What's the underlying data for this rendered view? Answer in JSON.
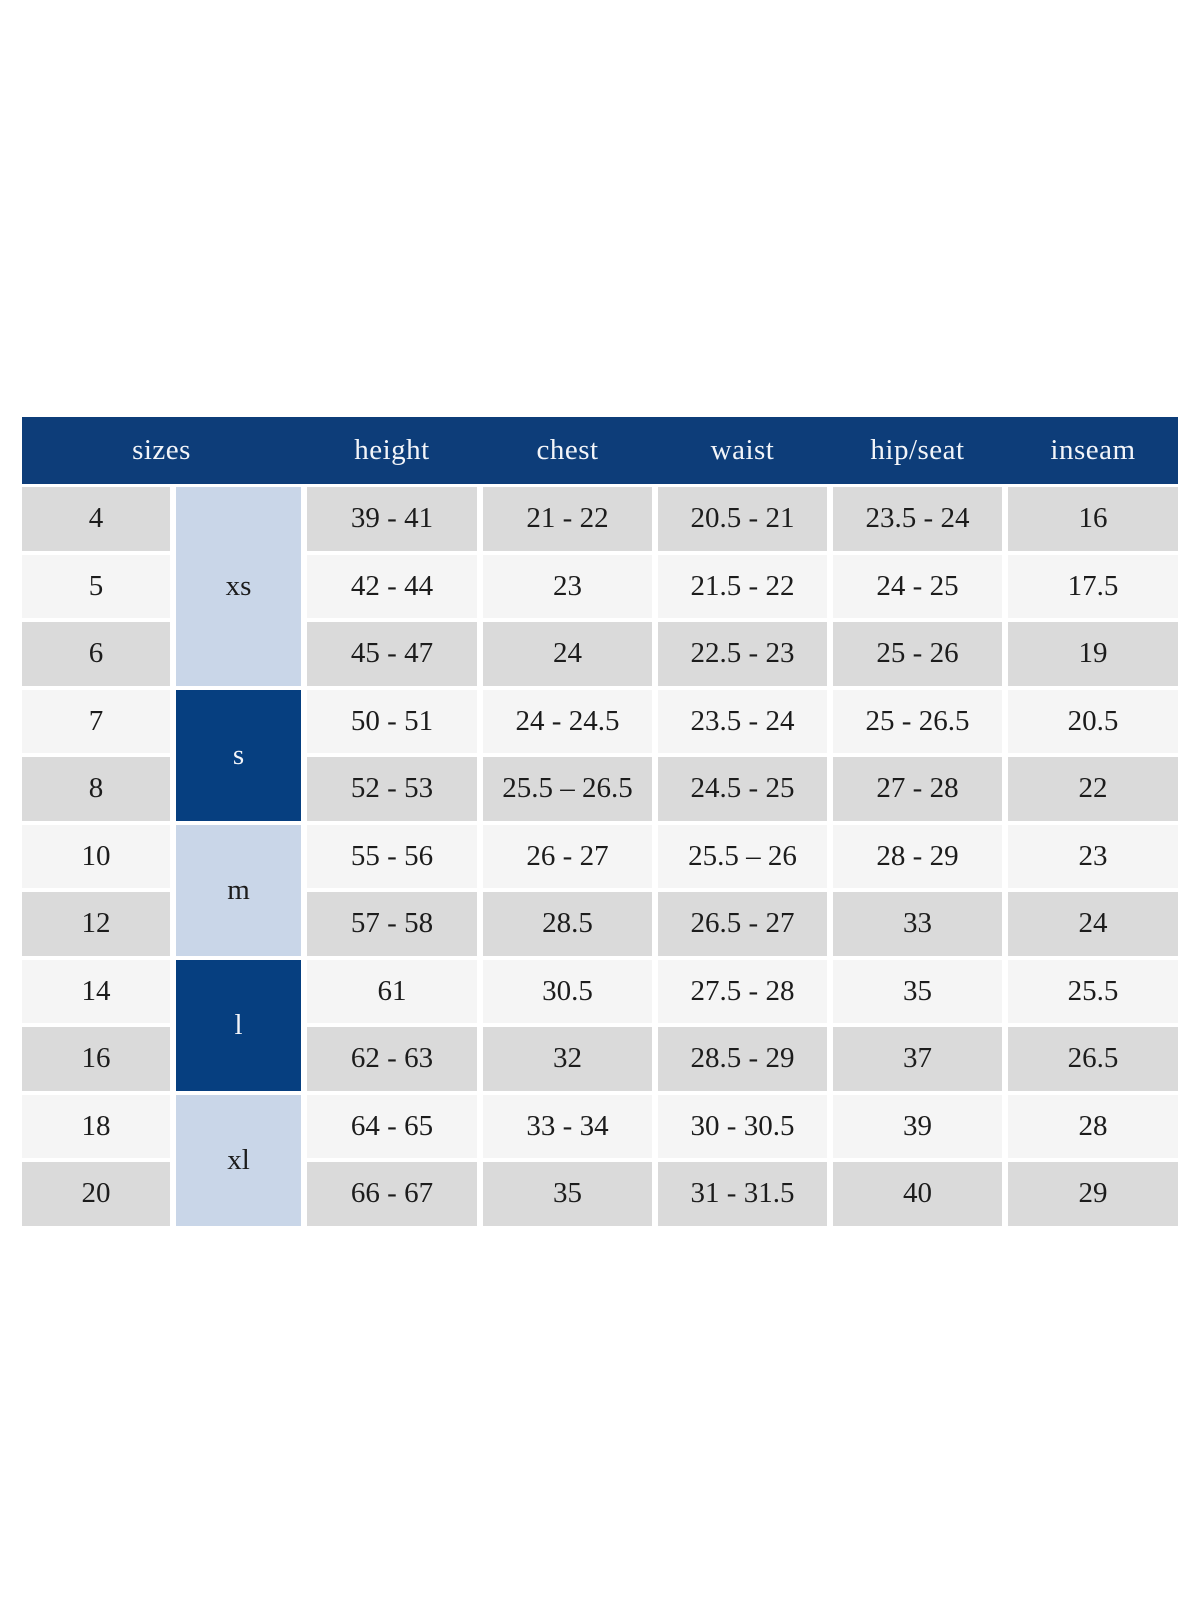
{
  "colors": {
    "page_bg": "#ffffff",
    "header_bg": "#0d3d79",
    "header_text": "#f3f5f9",
    "group_dark_bg": "#063f80",
    "group_light_bg": "#c9d6e8",
    "row_gray_bg": "#dadada",
    "row_light_bg": "#f5f5f5",
    "cell_text": "#1c1c1c"
  },
  "chart_data": {
    "type": "table",
    "headers": [
      "sizes",
      "height",
      "chest",
      "waist",
      "hip/seat",
      "inseam"
    ],
    "size_groups": [
      {
        "label": "xs",
        "rows": 3,
        "style": "light"
      },
      {
        "label": "s",
        "rows": 2,
        "style": "dark"
      },
      {
        "label": "m",
        "rows": 2,
        "style": "light"
      },
      {
        "label": "l",
        "rows": 2,
        "style": "dark"
      },
      {
        "label": "xl",
        "rows": 2,
        "style": "light"
      }
    ],
    "rows": [
      {
        "size": "4",
        "height": "39 - 41",
        "chest": "21 - 22",
        "waist": "20.5 - 21",
        "hip_seat": "23.5 - 24",
        "inseam": "16"
      },
      {
        "size": "5",
        "height": "42 - 44",
        "chest": "23",
        "waist": "21.5 - 22",
        "hip_seat": "24 - 25",
        "inseam": "17.5"
      },
      {
        "size": "6",
        "height": "45 - 47",
        "chest": "24",
        "waist": "22.5 - 23",
        "hip_seat": "25 - 26",
        "inseam": "19"
      },
      {
        "size": "7",
        "height": "50 - 51",
        "chest": "24 - 24.5",
        "waist": "23.5 - 24",
        "hip_seat": "25 - 26.5",
        "inseam": "20.5"
      },
      {
        "size": "8",
        "height": "52 - 53",
        "chest": "25.5 – 26.5",
        "waist": "24.5 - 25",
        "hip_seat": "27 - 28",
        "inseam": "22"
      },
      {
        "size": "10",
        "height": "55 - 56",
        "chest": "26 - 27",
        "waist": "25.5 – 26",
        "hip_seat": "28 - 29",
        "inseam": "23"
      },
      {
        "size": "12",
        "height": "57 - 58",
        "chest": "28.5",
        "waist": "26.5 - 27",
        "hip_seat": "33",
        "inseam": "24"
      },
      {
        "size": "14",
        "height": "61",
        "chest": "30.5",
        "waist": "27.5 - 28",
        "hip_seat": "35",
        "inseam": "25.5"
      },
      {
        "size": "16",
        "height": "62 - 63",
        "chest": "32",
        "waist": "28.5 - 29",
        "hip_seat": "37",
        "inseam": "26.5"
      },
      {
        "size": "18",
        "height": "64 - 65",
        "chest": "33 - 34",
        "waist": "30 - 30.5",
        "hip_seat": "39",
        "inseam": "28"
      },
      {
        "size": "20",
        "height": "66 - 67",
        "chest": "35",
        "waist": "31 - 31.5",
        "hip_seat": "40",
        "inseam": "29"
      }
    ]
  }
}
